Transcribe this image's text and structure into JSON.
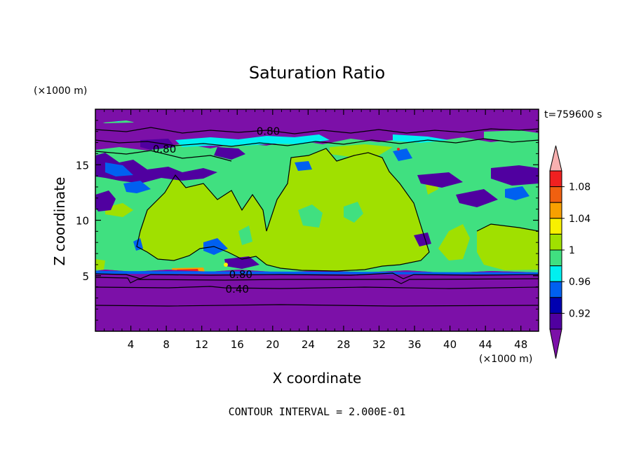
{
  "chart_data": {
    "type": "heatmap",
    "title": "Saturation Ratio",
    "xlabel": "X coordinate",
    "ylabel": "Z coordinate",
    "x_unit": "(×1000 m)",
    "y_unit": "(×1000 m)",
    "time_label": "t=759600 s",
    "footer": "CONTOUR INTERVAL = 2.000E-01",
    "xlim": [
      0,
      50
    ],
    "ylim": [
      0,
      20
    ],
    "x_ticks": [
      4,
      8,
      12,
      16,
      20,
      24,
      28,
      32,
      36,
      40,
      44,
      48
    ],
    "y_ticks": [
      5,
      10,
      15
    ],
    "colorbar": {
      "labels": [
        "1.08",
        "1.04",
        "1",
        "0.96",
        "0.92"
      ],
      "colors": [
        "#f8b0b0",
        "#f02020",
        "#f06010",
        "#f8a000",
        "#f8f000",
        "#a0e000",
        "#40e080",
        "#00f0f0",
        "#0060f0",
        "#0000b0",
        "#5000a0",
        "#7c10a8"
      ]
    },
    "contour_labels": [
      {
        "text": "0.80",
        "x": 19.5,
        "z": 18.0
      },
      {
        "text": "0.80",
        "x": 7.8,
        "z": 16.4
      },
      {
        "text": "0.80",
        "x": 16.4,
        "z": 5.1
      },
      {
        "text": "0.40",
        "x": 16.0,
        "z": 3.8
      }
    ]
  }
}
